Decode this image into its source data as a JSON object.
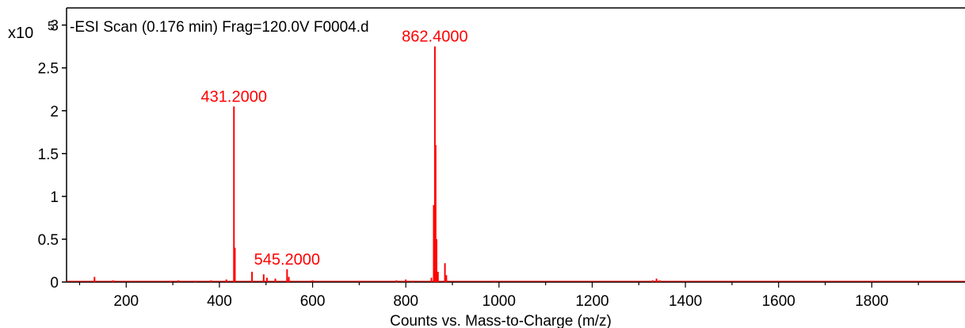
{
  "chart_data": {
    "type": "bar",
    "title": "-ESI Scan (0.176 min) Frag=120.0V F0004.d",
    "y_multiplier": {
      "base": "x10",
      "exponent": "5"
    },
    "xlabel": "Counts vs. Mass-to-Charge (m/z)",
    "ylabel": "",
    "xlim": [
      72,
      2000
    ],
    "ylim": [
      0,
      3.2
    ],
    "x_ticks": [
      200,
      400,
      600,
      800,
      1000,
      1200,
      1400,
      1600,
      1800
    ],
    "y_ticks": [
      0,
      0.5,
      1,
      1.5,
      2,
      2.5,
      3
    ],
    "y_tick_labels": [
      "0",
      "0.5",
      "1",
      "1.5",
      "2",
      "2.5",
      "3"
    ],
    "grid": false,
    "series_color": "#ff0000",
    "axis_color": "#000000",
    "annotation_color": "#ff0000",
    "peaks": [
      {
        "x": 132,
        "y": 0.06
      },
      {
        "x": 172,
        "y": 0.02
      },
      {
        "x": 295,
        "y": 0.015
      },
      {
        "x": 312,
        "y": 0.02
      },
      {
        "x": 348,
        "y": 0.015
      },
      {
        "x": 382,
        "y": 0.02
      },
      {
        "x": 415,
        "y": 0.03
      },
      {
        "x": 431.2,
        "y": 2.05
      },
      {
        "x": 433.2,
        "y": 0.4
      },
      {
        "x": 470,
        "y": 0.12
      },
      {
        "x": 495,
        "y": 0.09
      },
      {
        "x": 502,
        "y": 0.05
      },
      {
        "x": 520,
        "y": 0.04
      },
      {
        "x": 545.2,
        "y": 0.15
      },
      {
        "x": 549,
        "y": 0.06
      },
      {
        "x": 600,
        "y": 0.02
      },
      {
        "x": 700,
        "y": 0.015
      },
      {
        "x": 780,
        "y": 0.02
      },
      {
        "x": 800,
        "y": 0.03
      },
      {
        "x": 815,
        "y": 0.015
      },
      {
        "x": 855,
        "y": 0.05
      },
      {
        "x": 860,
        "y": 0.9
      },
      {
        "x": 862.4,
        "y": 2.75
      },
      {
        "x": 864,
        "y": 1.6
      },
      {
        "x": 866,
        "y": 0.5
      },
      {
        "x": 869,
        "y": 0.12
      },
      {
        "x": 884,
        "y": 0.22
      },
      {
        "x": 887,
        "y": 0.08
      },
      {
        "x": 990,
        "y": 0.015
      },
      {
        "x": 1330,
        "y": 0.02
      },
      {
        "x": 1338,
        "y": 0.04
      },
      {
        "x": 1345,
        "y": 0.02
      },
      {
        "x": 1800,
        "y": 0.015
      }
    ],
    "annotations": [
      {
        "label": "431.2000",
        "x": 431.2,
        "y": 2.05
      },
      {
        "label": "545.2000",
        "x": 545.2,
        "y": 0.15
      },
      {
        "label": "862.4000",
        "x": 862.4,
        "y": 2.75
      }
    ]
  }
}
